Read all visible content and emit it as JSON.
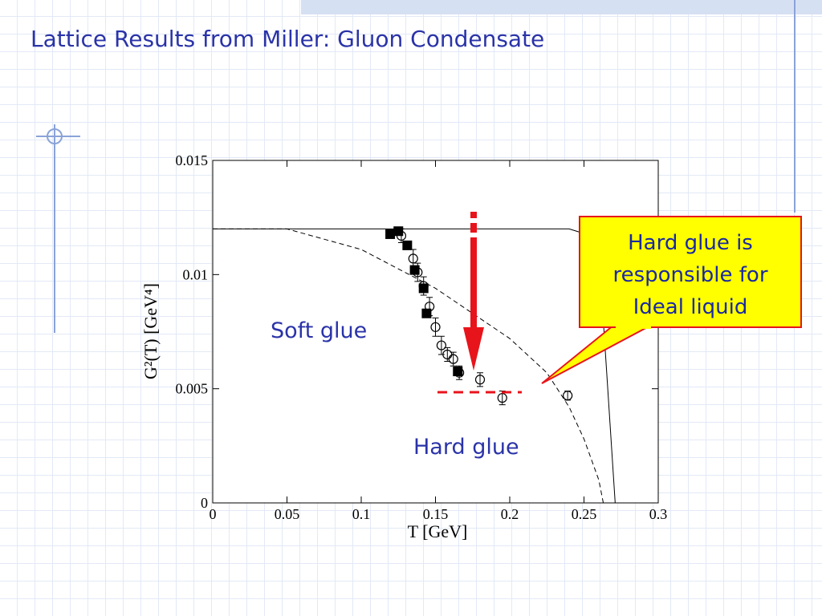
{
  "chart_data": {
    "type": "scatter",
    "title": "Lattice Results from Miller: Gluon Condensate",
    "xlabel": "T  [GeV]",
    "ylabel": "G²(T)  [GeV⁴]",
    "xlim": [
      0,
      0.3
    ],
    "ylim": [
      0,
      0.015
    ],
    "xticks": [
      0,
      0.05,
      0.1,
      0.15,
      0.2,
      0.25,
      0.3
    ],
    "yticks": [
      0,
      0.005,
      0.01,
      0.015
    ],
    "series": [
      {
        "marker": "square",
        "color": "#000000",
        "x": [
          0.1195,
          0.125,
          0.131,
          0.136,
          0.142,
          0.144,
          0.165
        ],
        "values": [
          0.01177,
          0.0119,
          0.01128,
          0.0102,
          0.0094,
          0.0083,
          0.00576
        ]
      },
      {
        "marker": "circle",
        "color": "#000000",
        "x": [
          0.127,
          0.135,
          0.138,
          0.142,
          0.146,
          0.15,
          0.154,
          0.158,
          0.162,
          0.166,
          0.18,
          0.195,
          0.239
        ],
        "values": [
          0.0117,
          0.0107,
          0.0101,
          0.0095,
          0.0086,
          0.0077,
          0.0069,
          0.0065,
          0.0063,
          0.0057,
          0.0054,
          0.0046,
          0.0047
        ],
        "errors": [
          0.0003,
          0.0004,
          0.0004,
          0.0004,
          0.0004,
          0.0004,
          0.0004,
          0.0003,
          0.0003,
          0.0003,
          0.0003,
          0.0003,
          0.0002
        ]
      },
      {
        "line": "solid",
        "color": "#000000",
        "x": [
          0,
          0.24,
          0.25,
          0.258,
          0.262,
          0.265,
          0.268,
          0.271
        ],
        "values": [
          0.012,
          0.012,
          0.0118,
          0.011,
          0.009,
          0.006,
          0.003,
          0
        ]
      },
      {
        "line": "dashed",
        "color": "#000000",
        "x": [
          0,
          0.05,
          0.1,
          0.15,
          0.2,
          0.225,
          0.24,
          0.25,
          0.26,
          0.263
        ],
        "values": [
          0.012,
          0.012,
          0.0111,
          0.0094,
          0.0072,
          0.0057,
          0.0042,
          0.0028,
          0.001,
          0
        ]
      }
    ],
    "annotations": [
      "Soft glue",
      "Hard glue"
    ],
    "callout": [
      "Hard glue is",
      "responsible for",
      "Ideal liquid"
    ]
  }
}
